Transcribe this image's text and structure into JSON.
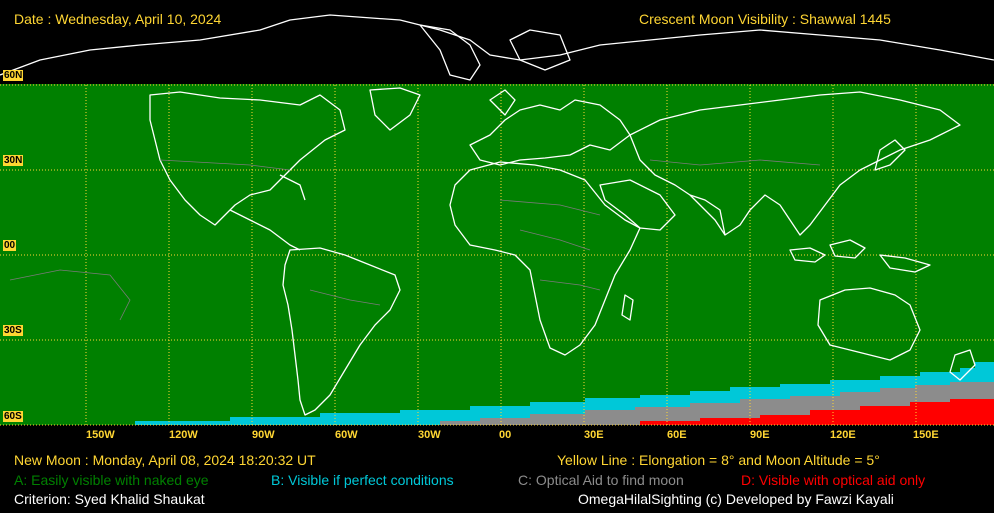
{
  "header": {
    "date": "Date : Wednesday, April 10, 2024",
    "title": "Crescent Moon Visibility : Shawwal  1445"
  },
  "map": {
    "lat_labels": [
      "60N",
      "30N",
      "00",
      "30S",
      "60S"
    ],
    "lon_labels": [
      "150W",
      "120W",
      "90W",
      "60W",
      "30W",
      "00",
      "30E",
      "60E",
      "90E",
      "120E",
      "150E"
    ],
    "colors": {
      "ocean_land": "#008000",
      "zone_b": "#00c8d8",
      "zone_c": "#8c8c8c",
      "zone_d": "#ff0000",
      "grid": "#ffd633",
      "coast": "#ffffff"
    }
  },
  "footer": {
    "new_moon": "New Moon : Monday, April 08, 2024  18:20:32  UT",
    "yellow_line": "Yellow Line : Elongation = 8° and Moon Altitude = 5°",
    "legend": {
      "a": "A: Easily visible with naked eye",
      "b": "B: Visible if perfect conditions",
      "c": "C: Optical Aid to find moon",
      "d": "D: Visible with optical aid only"
    },
    "criterion": "Criterion: Syed Khalid Shaukat",
    "credit": "OmegaHilalSighting  (c)  Developed by Fawzi Kayali"
  }
}
